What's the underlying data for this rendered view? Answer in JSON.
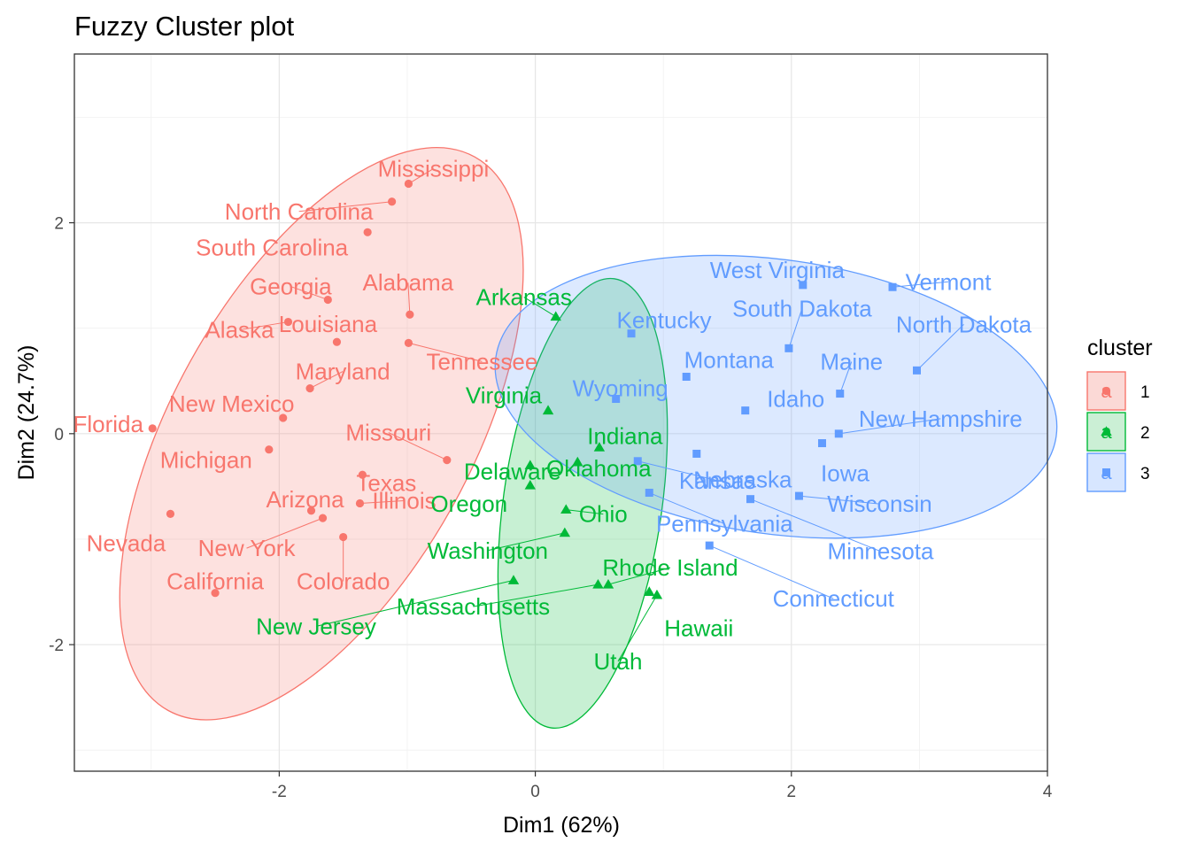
{
  "chart_data": {
    "type": "scatter",
    "title": "Fuzzy Cluster plot",
    "xlabel": "Dim1 (62%)",
    "ylabel": "Dim2 (24.7%)",
    "xlim": [
      -3.6,
      4.0
    ],
    "ylim": [
      -3.2,
      3.6
    ],
    "x_ticks": [
      -2,
      0,
      2,
      4
    ],
    "y_ticks": [
      -2,
      0,
      2
    ],
    "x_tick_labels": [
      "-2",
      "0",
      "2",
      "4"
    ],
    "y_tick_labels": [
      "-2",
      "0",
      "2"
    ],
    "grid": true,
    "legend": {
      "title": "cluster",
      "position": "right",
      "glyph": "a",
      "entries": [
        {
          "label": "1",
          "color": "#F8766D",
          "shape": "circle"
        },
        {
          "label": "2",
          "color": "#00BA38",
          "shape": "triangle"
        },
        {
          "label": "3",
          "color": "#619CFF",
          "shape": "square"
        }
      ]
    },
    "colors": {
      "1": "#F8766D",
      "2": "#00BA38",
      "3": "#619CFF"
    },
    "fills": {
      "1": "#FBD9D6",
      "2": "#CBEFD5",
      "3": "#D7E6FF"
    },
    "ellipses": [
      {
        "cluster": "1",
        "center": [
          -1.67,
          0.0
        ],
        "radii": [
          1.17,
          3.0
        ],
        "rotation_deg": 29
      },
      {
        "cluster": "2",
        "center": [
          0.37,
          -0.66
        ],
        "radii": [
          0.62,
          2.15
        ],
        "rotation_deg": 8
      },
      {
        "cluster": "3",
        "center": [
          1.88,
          0.35
        ],
        "radii": [
          2.21,
          1.3
        ],
        "rotation_deg": 8
      }
    ],
    "series": [
      {
        "name": "1",
        "points": [
          {
            "label": "Mississippi",
            "x": -0.99,
            "y": 2.37
          },
          {
            "label": "North Carolina",
            "x": -1.12,
            "y": 2.2
          },
          {
            "label": "South Carolina",
            "x": -1.31,
            "y": 1.91
          },
          {
            "label": "Georgia",
            "x": -1.62,
            "y": 1.27
          },
          {
            "label": "Alabama",
            "x": -0.98,
            "y": 1.13
          },
          {
            "label": "Alaska",
            "x": -1.93,
            "y": 1.06
          },
          {
            "label": "Louisiana",
            "x": -1.55,
            "y": 0.87
          },
          {
            "label": "Tennessee",
            "x": -0.99,
            "y": 0.86
          },
          {
            "label": "Maryland",
            "x": -1.76,
            "y": 0.43
          },
          {
            "label": "New Mexico",
            "x": -1.97,
            "y": 0.15
          },
          {
            "label": "Missouri",
            "x": -0.69,
            "y": -0.25
          },
          {
            "label": "Florida",
            "x": -2.99,
            "y": 0.05
          },
          {
            "label": "Michigan",
            "x": -2.08,
            "y": -0.15
          },
          {
            "label": "Texas",
            "x": -1.35,
            "y": -0.39
          },
          {
            "label": "Illinois",
            "x": -1.37,
            "y": -0.66
          },
          {
            "label": "Arizona",
            "x": -1.75,
            "y": -0.73
          },
          {
            "label": "New York",
            "x": -1.66,
            "y": -0.8
          },
          {
            "label": "Colorado",
            "x": -1.5,
            "y": -0.98
          },
          {
            "label": "Nevada",
            "x": -2.85,
            "y": -0.76
          },
          {
            "label": "California",
            "x": -2.5,
            "y": -1.51
          }
        ]
      },
      {
        "name": "2",
        "points": [
          {
            "label": "Arkansas",
            "x": 0.16,
            "y": 1.11
          },
          {
            "label": "Virginia",
            "x": 0.1,
            "y": 0.22
          },
          {
            "label": "Indiana",
            "x": 0.5,
            "y": -0.13
          },
          {
            "label": "Delaware",
            "x": -0.04,
            "y": -0.3
          },
          {
            "label": "Oklahoma",
            "x": 0.33,
            "y": -0.27
          },
          {
            "label": "Oregon",
            "x": -0.04,
            "y": -0.49
          },
          {
            "label": "Ohio",
            "x": 0.24,
            "y": -0.72
          },
          {
            "label": "Washington",
            "x": 0.23,
            "y": -0.94
          },
          {
            "label": "Rhode Island",
            "x": 0.57,
            "y": -1.43
          },
          {
            "label": "Massachusetts",
            "x": 0.49,
            "y": -1.43
          },
          {
            "label": "Hawaii",
            "x": 0.89,
            "y": -1.5
          },
          {
            "label": "Utah",
            "x": 0.95,
            "y": -1.53
          },
          {
            "label": "New Jersey",
            "x": -0.17,
            "y": -1.39
          }
        ]
      },
      {
        "name": "3",
        "points": [
          {
            "label": "West Virginia",
            "x": 2.09,
            "y": 1.41
          },
          {
            "label": "Vermont",
            "x": 2.79,
            "y": 1.39
          },
          {
            "label": "South Dakota",
            "x": 1.98,
            "y": 0.81
          },
          {
            "label": "North Dakota",
            "x": 2.98,
            "y": 0.6
          },
          {
            "label": "Kentucky",
            "x": 0.75,
            "y": 0.95
          },
          {
            "label": "Montana",
            "x": 1.18,
            "y": 0.54
          },
          {
            "label": "Maine",
            "x": 2.38,
            "y": 0.38
          },
          {
            "label": "Wyoming",
            "x": 0.63,
            "y": 0.33
          },
          {
            "label": "Idaho",
            "x": 1.64,
            "y": 0.22
          },
          {
            "label": "New Hampshire",
            "x": 2.37,
            "y": 0.0
          },
          {
            "label": "Nebraska",
            "x": 1.26,
            "y": -0.19
          },
          {
            "label": "Iowa",
            "x": 2.24,
            "y": -0.09
          },
          {
            "label": "Kansas",
            "x": 0.8,
            "y": -0.26
          },
          {
            "label": "Pennsylvania",
            "x": 0.89,
            "y": -0.56
          },
          {
            "label": "Wisconsin",
            "x": 2.06,
            "y": -0.59
          },
          {
            "label": "Minnesota",
            "x": 1.68,
            "y": -0.62
          },
          {
            "label": "Connecticut",
            "x": 1.36,
            "y": -1.06
          }
        ]
      }
    ]
  }
}
